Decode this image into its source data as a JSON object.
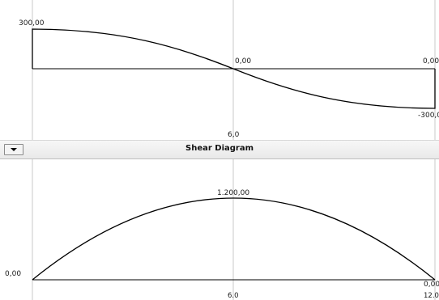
{
  "shear_panel": {
    "left_value": "300,00",
    "mid_value": "0,00",
    "right_value": "0,00",
    "right_bottom_value": "-300,0",
    "mid_tick": "6,0"
  },
  "title_bar": {
    "title": "Shear Diagram",
    "dropdown_icon": "chevron-down-icon"
  },
  "moment_panel": {
    "peak_value": "1.200,00",
    "left_value": "0,00",
    "right_value": "0,00",
    "mid_tick": "6.0",
    "end_tick": "12.0"
  },
  "colors": {
    "curve": "#000000",
    "gridline": "#c8c8c8",
    "title_bar": "#ececec"
  }
}
